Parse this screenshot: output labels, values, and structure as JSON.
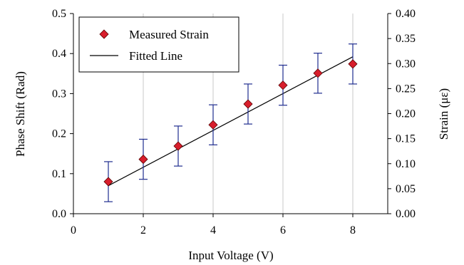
{
  "chart_data": {
    "type": "scatter",
    "xlabel": "Input Voltage (V)",
    "ylabel_left": "Phase Shift (Rad)",
    "ylabel_right": "Strain (με)",
    "xlim": [
      0,
      9
    ],
    "ylim_left": [
      0.0,
      0.5
    ],
    "ylim_right": [
      0.0,
      0.4
    ],
    "x_ticks": [
      "0",
      "2",
      "4",
      "6",
      "8"
    ],
    "y_ticks_left": [
      "0.0",
      "0.1",
      "0.2",
      "0.3",
      "0.4",
      "0.5"
    ],
    "y_ticks_right": [
      "0.00",
      "0.05",
      "0.10",
      "0.15",
      "0.20",
      "0.25",
      "0.30",
      "0.35",
      "0.40"
    ],
    "grid": "vertical-only",
    "legend_position": "top-left",
    "series": [
      {
        "name": "Measured Strain",
        "x": [
          1,
          2,
          3,
          4,
          5,
          6,
          7,
          8
        ],
        "y": [
          0.08,
          0.136,
          0.169,
          0.222,
          0.274,
          0.321,
          0.351,
          0.374
        ],
        "error": 0.05,
        "marker": "diamond",
        "color": "#d81e2c",
        "error_color": "#1f2d8f"
      },
      {
        "name": "Fitted Line",
        "x": [
          1,
          8
        ],
        "y": [
          0.07,
          0.392
        ],
        "type": "line",
        "color": "#000000"
      }
    ]
  }
}
